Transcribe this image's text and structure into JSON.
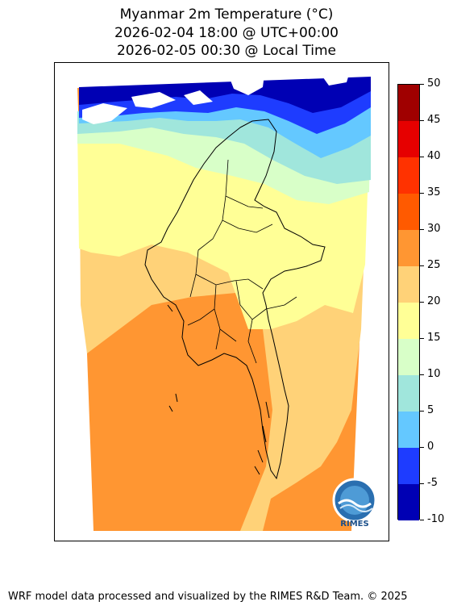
{
  "title": {
    "line1": "Myanmar 2m Temperature (°C)",
    "line2": "2026-02-04 18:00 @ UTC+00:00",
    "line3": "2026-02-05 00:30 @ Local Time"
  },
  "colorbar": {
    "levels": [
      -10,
      -5,
      0,
      5,
      10,
      15,
      20,
      25,
      30,
      35,
      40,
      45,
      50
    ],
    "labels": [
      "50",
      "45",
      "40",
      "35",
      "30",
      "25",
      "20",
      "15",
      "10",
      "5",
      "0",
      "-5",
      "-10"
    ],
    "colors": [
      "#0000b4",
      "#1e3cff",
      "#64c8ff",
      "#a0e6dc",
      "#d8ffc8",
      "#ffff96",
      "#ffd278",
      "#ff9632",
      "#ff5a00",
      "#ff3200",
      "#e60000",
      "#a00000"
    ]
  },
  "logo": {
    "text": "RIMES"
  },
  "footer": {
    "text": "WRF model data processed and visualized by the RIMES R&D Team. © 2025"
  }
}
